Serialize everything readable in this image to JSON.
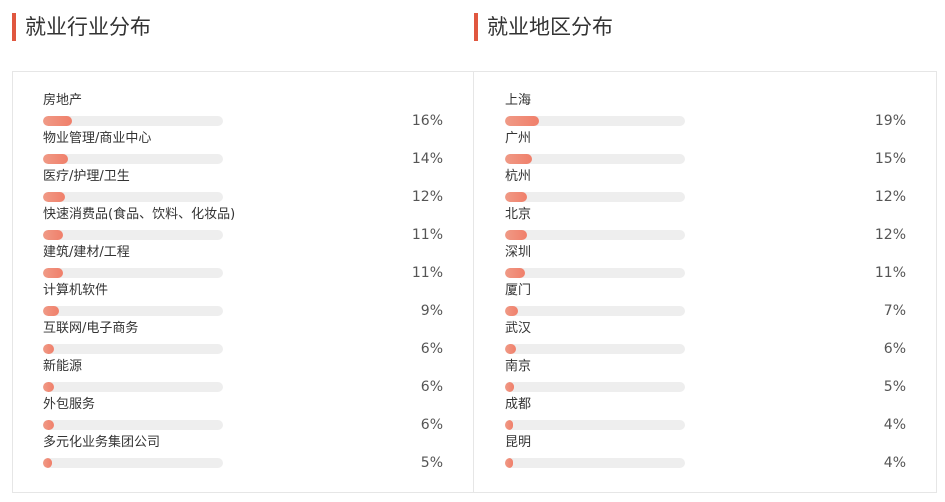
{
  "industry": {
    "title": "就业行业分布",
    "items": [
      {
        "label": "房地产",
        "percent": 16,
        "value": "16%"
      },
      {
        "label": "物业管理/商业中心",
        "percent": 14,
        "value": "14%"
      },
      {
        "label": "医疗/护理/卫生",
        "percent": 12,
        "value": "12%"
      },
      {
        "label": "快速消费品(食品、饮料、化妆品)",
        "percent": 11,
        "value": "11%"
      },
      {
        "label": "建筑/建材/工程",
        "percent": 11,
        "value": "11%"
      },
      {
        "label": "计算机软件",
        "percent": 9,
        "value": "9%"
      },
      {
        "label": "互联网/电子商务",
        "percent": 6,
        "value": "6%"
      },
      {
        "label": "新能源",
        "percent": 6,
        "value": "6%"
      },
      {
        "label": "外包服务",
        "percent": 6,
        "value": "6%"
      },
      {
        "label": "多元化业务集团公司",
        "percent": 5,
        "value": "5%"
      }
    ]
  },
  "region": {
    "title": "就业地区分布",
    "items": [
      {
        "label": "上海",
        "percent": 19,
        "value": "19%"
      },
      {
        "label": "广州",
        "percent": 15,
        "value": "15%"
      },
      {
        "label": "杭州",
        "percent": 12,
        "value": "12%"
      },
      {
        "label": "北京",
        "percent": 12,
        "value": "12%"
      },
      {
        "label": "深圳",
        "percent": 11,
        "value": "11%"
      },
      {
        "label": "厦门",
        "percent": 7,
        "value": "7%"
      },
      {
        "label": "武汉",
        "percent": 6,
        "value": "6%"
      },
      {
        "label": "南京",
        "percent": 5,
        "value": "5%"
      },
      {
        "label": "成都",
        "percent": 4,
        "value": "4%"
      },
      {
        "label": "昆明",
        "percent": 4,
        "value": "4%"
      }
    ]
  },
  "colors": {
    "accent": "#e0573f",
    "bar_fill": "#f07f6a",
    "bar_track": "#eeeeee"
  }
}
